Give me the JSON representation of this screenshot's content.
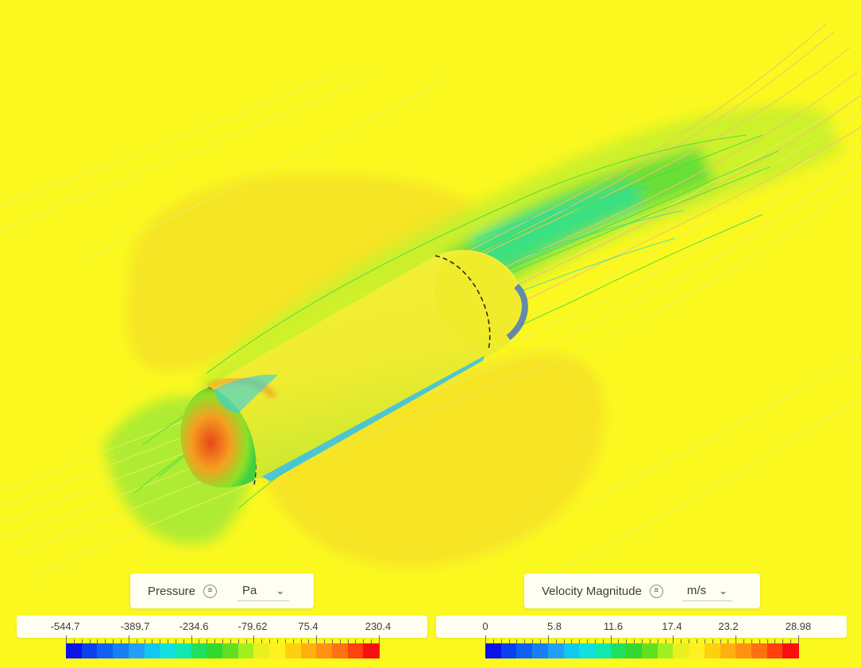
{
  "pressure_legend": {
    "quantity": "Pressure",
    "unit": "Pa",
    "menu_icon": "list-menu-icon",
    "dropdown_icon": "chevron-down-icon",
    "ticks": [
      "-544.7",
      "-389.7",
      "-234.6",
      "-79.62",
      "75.4",
      "230.4"
    ],
    "colors": [
      "#0a14e8",
      "#0a40f0",
      "#1060f4",
      "#1880f6",
      "#20a0f8",
      "#10c8f0",
      "#10e0e0",
      "#10e8b0",
      "#20e060",
      "#30d830",
      "#60e020",
      "#a0f020",
      "#e8f020",
      "#fff020",
      "#ffd010",
      "#ffb010",
      "#ff9010",
      "#ff7010",
      "#ff4010",
      "#f81010"
    ]
  },
  "velocity_legend": {
    "quantity": "Velocity Magnitude",
    "unit": "m/s",
    "menu_icon": "list-menu-icon",
    "dropdown_icon": "chevron-down-icon",
    "ticks": [
      "0",
      "5.8",
      "11.6",
      "17.4",
      "23.2",
      "28.98"
    ],
    "colors": [
      "#0a14e8",
      "#0a40f0",
      "#1060f4",
      "#1880f6",
      "#20a0f8",
      "#10c8f0",
      "#10e0e0",
      "#10e8b0",
      "#20e060",
      "#30d830",
      "#60e020",
      "#a0f020",
      "#e8f020",
      "#fff020",
      "#ffd010",
      "#ffb010",
      "#ff9010",
      "#ff7010",
      "#ff4010",
      "#f81010"
    ]
  },
  "scene": {
    "background": "#fbf820",
    "object": "cylindrical-body-with-rounded-nose"
  }
}
